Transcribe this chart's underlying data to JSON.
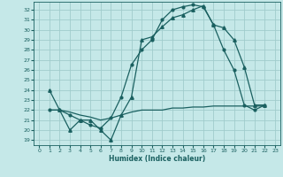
{
  "xlabel": "Humidex (Indice chaleur)",
  "background_color": "#c5e8e8",
  "grid_color": "#a0cccc",
  "line_color": "#1a6060",
  "xlim": [
    -0.5,
    23.5
  ],
  "ylim": [
    18.5,
    32.8
  ],
  "yticks": [
    19,
    20,
    21,
    22,
    23,
    24,
    25,
    26,
    27,
    28,
    29,
    30,
    31,
    32
  ],
  "xticks": [
    0,
    1,
    2,
    3,
    4,
    5,
    6,
    7,
    8,
    9,
    10,
    11,
    12,
    13,
    14,
    15,
    16,
    17,
    18,
    19,
    20,
    21,
    22,
    23
  ],
  "series": [
    {
      "x": [
        1,
        2,
        3,
        4,
        5,
        6,
        7,
        8,
        9,
        10,
        11,
        12,
        13,
        14,
        15,
        16,
        17,
        18,
        19,
        20,
        21,
        22
      ],
      "y": [
        24,
        22,
        20,
        21,
        21,
        20,
        19.0,
        21.5,
        23.3,
        29.0,
        29.3,
        30.3,
        31.2,
        31.5,
        32.0,
        32.4,
        30.5,
        30.2,
        29.0,
        26.3,
        22.5,
        22.5
      ],
      "marker": "^",
      "markersize": 2.5,
      "linewidth": 0.9
    },
    {
      "x": [
        1,
        2,
        3,
        4,
        5,
        6,
        7,
        8,
        9,
        10,
        11,
        12,
        13,
        14,
        15,
        16,
        17,
        18,
        19,
        20,
        21,
        22
      ],
      "y": [
        22.0,
        22.0,
        21.8,
        21.5,
        21.3,
        21.0,
        21.2,
        21.5,
        21.8,
        22.0,
        22.0,
        22.0,
        22.2,
        22.2,
        22.3,
        22.3,
        22.4,
        22.4,
        22.4,
        22.4,
        22.4,
        22.4
      ],
      "marker": null,
      "markersize": 0,
      "linewidth": 0.9
    },
    {
      "x": [
        1,
        2,
        3,
        4,
        5,
        6,
        7,
        8,
        9,
        10,
        11,
        12,
        13,
        14,
        15,
        16,
        17,
        18,
        19,
        20,
        21,
        22
      ],
      "y": [
        22.0,
        22.0,
        21.5,
        21.0,
        20.5,
        20.2,
        21.2,
        23.3,
        26.5,
        28.0,
        29.0,
        31.0,
        32.0,
        32.3,
        32.5,
        32.3,
        30.5,
        28.0,
        26.0,
        22.5,
        22.0,
        22.5
      ],
      "marker": "o",
      "markersize": 2.0,
      "linewidth": 0.9
    }
  ]
}
